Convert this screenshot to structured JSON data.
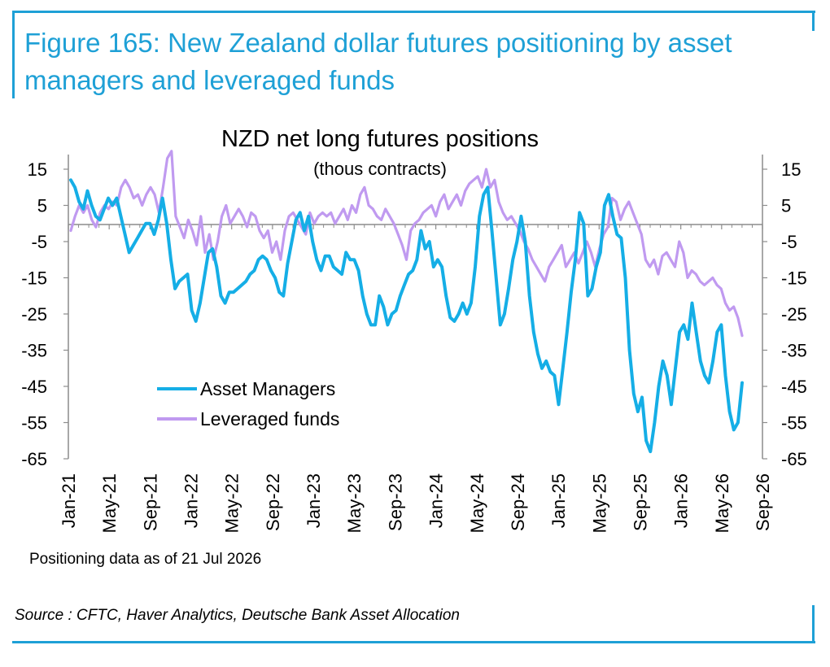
{
  "header": {
    "figure_title": "Figure 165: New Zealand dollar futures positioning by asset managers and leveraged funds"
  },
  "footer": {
    "note": "Positioning data as of 21 Jul 2026",
    "source": "Source : CFTC, Haver Analytics, Deutsche Bank Asset Allocation"
  },
  "colors": {
    "brand": "#1ea0d6",
    "asset_managers": "#15aee6",
    "leveraged_funds": "#c09af0",
    "axis": "#8c8c8c"
  },
  "chart_data": {
    "type": "line",
    "title": "NZD net long futures positions",
    "subtitle": "(thous contracts)",
    "xlabel": "",
    "ylabel": "",
    "x_ticks": [
      "Jan-21",
      "May-21",
      "Sep-21",
      "Jan-22",
      "May-22",
      "Sep-22",
      "Jan-23",
      "May-23",
      "Sep-23",
      "Jan-24",
      "May-24",
      "Sep-24",
      "Jan-25",
      "May-25",
      "Sep-25",
      "Jan-26",
      "May-26",
      "Sep-26"
    ],
    "y_ticks": [
      "15",
      "5",
      "-5",
      "-15",
      "-25",
      "-35",
      "-45",
      "-55",
      "-65"
    ],
    "ylim": [
      -65,
      20
    ],
    "grid": false,
    "legend_position": "bottom-left",
    "series": [
      {
        "name": "Asset Managers",
        "values": [
          12,
          10,
          6,
          4,
          9,
          5,
          2,
          1,
          4,
          7,
          5,
          7,
          2,
          -3,
          -8,
          -6,
          -4,
          -2,
          0,
          0,
          -3,
          1,
          7,
          0,
          -10,
          -18,
          -16,
          -15,
          -14,
          -24,
          -27,
          -22,
          -15,
          -8,
          -7,
          -12,
          -20,
          -22,
          -19,
          -19,
          -18,
          -17,
          -16,
          -14,
          -13,
          -10,
          -9,
          -10,
          -13,
          -15,
          -19,
          -20,
          -11,
          -5,
          1,
          3,
          -2,
          2,
          -5,
          -10,
          -13,
          -9,
          -9,
          -12,
          -13,
          -14,
          -8,
          -10,
          -10,
          -13,
          -20,
          -25,
          -28,
          -28,
          -20,
          -23,
          -28,
          -25,
          -24,
          -20,
          -17,
          -14,
          -13,
          -10,
          -2,
          -7,
          -5,
          -12,
          -10,
          -12,
          -20,
          -26,
          -27,
          -25,
          -22,
          -25,
          -22,
          -12,
          2,
          8,
          10,
          -2,
          -15,
          -28,
          -25,
          -18,
          -10,
          -5,
          2,
          -5,
          -20,
          -30,
          -36,
          -40,
          -38,
          -41,
          -42,
          -50,
          -40,
          -30,
          -19,
          -10,
          3,
          0,
          -20,
          -18,
          -12,
          -8,
          5,
          8,
          2,
          -3,
          -4,
          -15,
          -35,
          -47,
          -52,
          -48,
          -60,
          -63,
          -55,
          -45,
          -38,
          -42,
          -50,
          -40,
          -30,
          -28,
          -32,
          -22,
          -30,
          -38,
          -42,
          -44,
          -38,
          -30,
          -28,
          -42,
          -52,
          -57,
          -55,
          -44
        ]
      },
      {
        "name": "Leveraged funds",
        "values": [
          -2,
          2,
          5,
          3,
          5,
          1,
          -1,
          3,
          5,
          4,
          6,
          5,
          10,
          12,
          10,
          7,
          8,
          5,
          8,
          10,
          8,
          3,
          10,
          18,
          20,
          2,
          -1,
          -4,
          1,
          -2,
          -6,
          2,
          -8,
          -3,
          -10,
          -5,
          2,
          5,
          0,
          2,
          4,
          2,
          -1,
          3,
          2,
          -2,
          -4,
          -2,
          -8,
          -5,
          -10,
          -2,
          2,
          3,
          1,
          -1,
          -3,
          3,
          0,
          2,
          3,
          2,
          3,
          0,
          2,
          4,
          1,
          5,
          3,
          8,
          10,
          5,
          4,
          2,
          1,
          4,
          2,
          0,
          -3,
          -6,
          -10,
          -2,
          0,
          1,
          3,
          4,
          5,
          2,
          6,
          8,
          4,
          6,
          8,
          5,
          9,
          11,
          12,
          13,
          10,
          15,
          10,
          12,
          6,
          3,
          1,
          2,
          0,
          -2,
          -5,
          -7,
          -10,
          -12,
          -14,
          -16,
          -12,
          -10,
          -8,
          -6,
          -12,
          -10,
          -8,
          -11,
          -8,
          -5,
          -8,
          -12,
          -7,
          -3,
          -1,
          7,
          6,
          1,
          4,
          6,
          3,
          0,
          -3,
          -10,
          -12,
          -10,
          -14,
          -9,
          -8,
          -10,
          -12,
          -5,
          -8,
          -15,
          -13,
          -14,
          -16,
          -17,
          -16,
          -15,
          -17,
          -18,
          -22,
          -24,
          -23,
          -26,
          -31
        ]
      }
    ]
  }
}
